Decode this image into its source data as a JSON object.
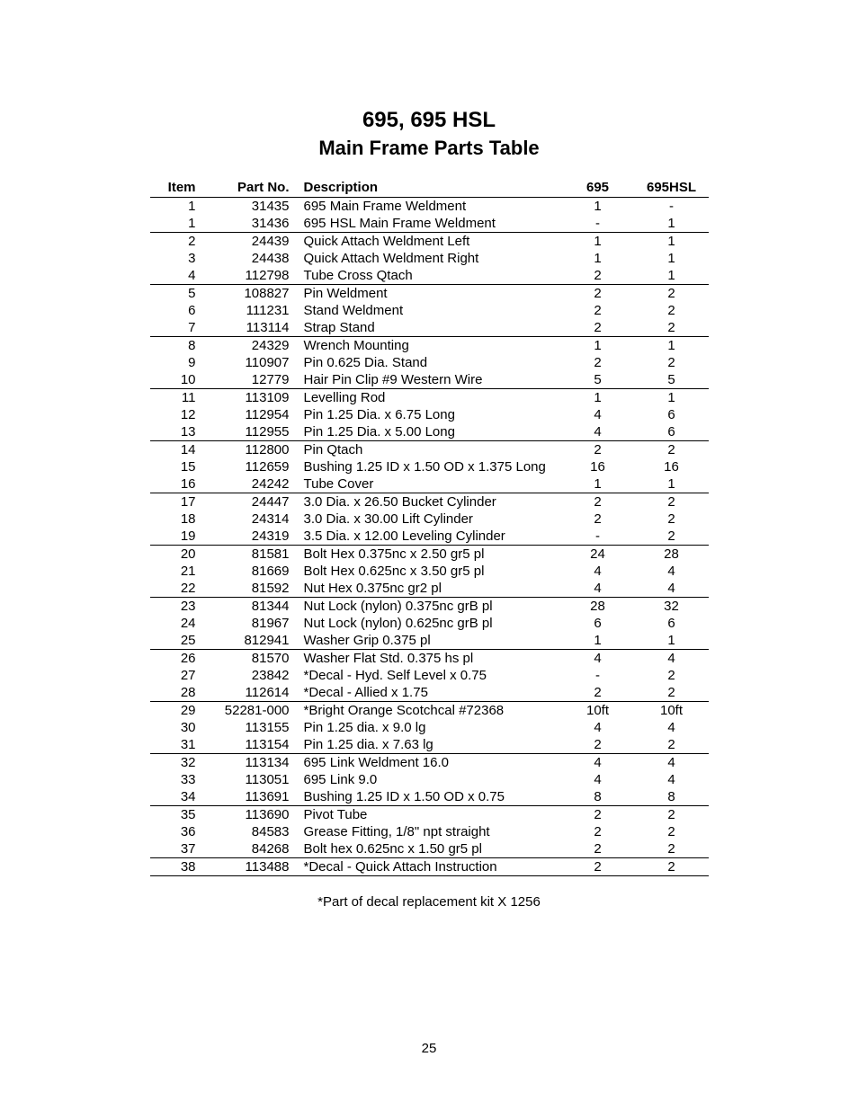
{
  "title": "695, 695 HSL",
  "subtitle": "Main Frame Parts Table",
  "columns": {
    "item": "Item",
    "part": "Part No.",
    "desc": "Description",
    "q1": "695",
    "q2": "695HSL"
  },
  "rows": [
    {
      "item": "1",
      "part": "31435",
      "desc": "695 Main Frame Weldment",
      "q1": "1",
      "q2": "-",
      "top": true
    },
    {
      "item": "1",
      "part": "31436",
      "desc": "695 HSL Main Frame Weldment",
      "q1": "-",
      "q2": "1"
    },
    {
      "item": "2",
      "part": "24439",
      "desc": "Quick Attach Weldment Left",
      "q1": "1",
      "q2": "1",
      "top": true
    },
    {
      "item": "3",
      "part": "24438",
      "desc": "Quick Attach Weldment Right",
      "q1": "1",
      "q2": "1"
    },
    {
      "item": "4",
      "part": "112798",
      "desc": "Tube Cross Qtach",
      "q1": "2",
      "q2": "1"
    },
    {
      "item": "5",
      "part": "108827",
      "desc": "Pin Weldment",
      "q1": "2",
      "q2": "2",
      "top": true
    },
    {
      "item": "6",
      "part": "111231",
      "desc": "Stand Weldment",
      "q1": "2",
      "q2": "2"
    },
    {
      "item": "7",
      "part": "113114",
      "desc": "Strap Stand",
      "q1": "2",
      "q2": "2"
    },
    {
      "item": "8",
      "part": "24329",
      "desc": "Wrench Mounting",
      "q1": "1",
      "q2": "1",
      "top": true
    },
    {
      "item": "9",
      "part": "110907",
      "desc": "Pin 0.625 Dia. Stand",
      "q1": "2",
      "q2": "2"
    },
    {
      "item": "10",
      "part": "12779",
      "desc": "Hair Pin Clip #9 Western Wire",
      "q1": "5",
      "q2": "5"
    },
    {
      "item": "11",
      "part": "113109",
      "desc": "Levelling Rod",
      "q1": "1",
      "q2": "1",
      "top": true
    },
    {
      "item": "12",
      "part": "112954",
      "desc": "Pin 1.25 Dia. x 6.75 Long",
      "q1": "4",
      "q2": "6"
    },
    {
      "item": "13",
      "part": "112955",
      "desc": "Pin 1.25 Dia. x 5.00 Long",
      "q1": "4",
      "q2": "6"
    },
    {
      "item": "14",
      "part": "112800",
      "desc": "Pin Qtach",
      "q1": "2",
      "q2": "2",
      "top": true
    },
    {
      "item": "15",
      "part": "112659",
      "desc": "Bushing 1.25 ID x 1.50 OD x 1.375 Long",
      "q1": "16",
      "q2": "16"
    },
    {
      "item": "16",
      "part": "24242",
      "desc": "Tube Cover",
      "q1": "1",
      "q2": "1"
    },
    {
      "item": "17",
      "part": "24447",
      "desc": "3.0 Dia. x 26.50 Bucket Cylinder",
      "q1": "2",
      "q2": "2",
      "top": true
    },
    {
      "item": "18",
      "part": "24314",
      "desc": "3.0 Dia. x 30.00 Lift Cylinder",
      "q1": "2",
      "q2": "2"
    },
    {
      "item": "19",
      "part": "24319",
      "desc": "3.5 Dia. x 12.00 Leveling Cylinder",
      "q1": "-",
      "q2": "2"
    },
    {
      "item": "20",
      "part": "81581",
      "desc": "Bolt Hex 0.375nc x 2.50 gr5 pl",
      "q1": "24",
      "q2": "28",
      "top": true
    },
    {
      "item": "21",
      "part": "81669",
      "desc": "Bolt Hex 0.625nc x 3.50 gr5 pl",
      "q1": "4",
      "q2": "4"
    },
    {
      "item": "22",
      "part": "81592",
      "desc": "Nut Hex 0.375nc gr2 pl",
      "q1": "4",
      "q2": "4"
    },
    {
      "item": "23",
      "part": "81344",
      "desc": "Nut Lock (nylon) 0.375nc grB pl",
      "q1": "28",
      "q2": "32",
      "top": true
    },
    {
      "item": "24",
      "part": "81967",
      "desc": "Nut Lock (nylon) 0.625nc grB pl",
      "q1": "6",
      "q2": "6"
    },
    {
      "item": "25",
      "part": "812941",
      "desc": "Washer Grip 0.375 pl",
      "q1": "1",
      "q2": "1"
    },
    {
      "item": "26",
      "part": "81570",
      "desc": "Washer Flat Std. 0.375 hs pl",
      "q1": "4",
      "q2": "4",
      "top": true
    },
    {
      "item": "27",
      "part": "23842",
      "desc": "*Decal - Hyd. Self Level x 0.75",
      "q1": "-",
      "q2": "2"
    },
    {
      "item": "28",
      "part": "112614",
      "desc": "*Decal - Allied x 1.75",
      "q1": "2",
      "q2": "2"
    },
    {
      "item": "29",
      "part": "52281-000",
      "desc": "*Bright Orange Scotchcal #72368",
      "q1": "10ft",
      "q2": "10ft",
      "top": true
    },
    {
      "item": "30",
      "part": "113155",
      "desc": "Pin 1.25 dia. x 9.0 lg",
      "q1": "4",
      "q2": "4"
    },
    {
      "item": "31",
      "part": "113154",
      "desc": "Pin 1.25 dia. x 7.63 lg",
      "q1": "2",
      "q2": "2"
    },
    {
      "item": "32",
      "part": "113134",
      "desc": "695 Link Weldment 16.0",
      "q1": "4",
      "q2": "4",
      "top": true
    },
    {
      "item": "33",
      "part": "113051",
      "desc": "695 Link 9.0",
      "q1": "4",
      "q2": "4"
    },
    {
      "item": "34",
      "part": "113691",
      "desc": "Bushing 1.25 ID x 1.50 OD x 0.75",
      "q1": "8",
      "q2": "8"
    },
    {
      "item": "35",
      "part": "113690",
      "desc": "Pivot Tube",
      "q1": "2",
      "q2": "2",
      "top": true
    },
    {
      "item": "36",
      "part": "84583",
      "desc": "Grease Fitting, 1/8\" npt straight",
      "q1": "2",
      "q2": "2"
    },
    {
      "item": "37",
      "part": "84268",
      "desc": "Bolt hex 0.625nc x 1.50 gr5 pl",
      "q1": "2",
      "q2": "2"
    },
    {
      "item": "38",
      "part": "113488",
      "desc": "*Decal - Quick Attach Instruction",
      "q1": "2",
      "q2": "2",
      "last": true
    }
  ],
  "footnote": "*Part of decal replacement kit X 1256",
  "page_number": "25"
}
